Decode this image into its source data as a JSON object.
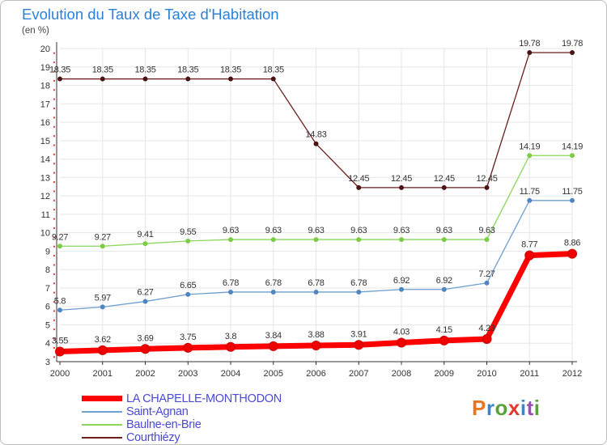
{
  "chart_data": {
    "type": "line",
    "title": "Evolution du Taux de Taxe d'Habitation",
    "ylabel": "(en %)",
    "xlabel": "",
    "ylim": [
      3,
      20
    ],
    "yticks": [
      "3",
      "4",
      "5",
      "6",
      "7",
      "8",
      "9",
      "10",
      "11",
      "12",
      "13",
      "14",
      "15",
      "16",
      "17",
      "18",
      "19",
      "20"
    ],
    "categories": [
      "2000",
      "2001",
      "2002",
      "2003",
      "2004",
      "2005",
      "2006",
      "2007",
      "2008",
      "2009",
      "2010",
      "2011",
      "2012"
    ],
    "series": [
      {
        "name": "Courthiézy",
        "color": "#6b1f1f",
        "marker": "#4a1414",
        "values": [
          18.35,
          18.35,
          18.35,
          18.35,
          18.35,
          18.35,
          14.83,
          12.45,
          12.45,
          12.45,
          12.45,
          19.78,
          19.78
        ],
        "labels": [
          "18.35",
          "18.35",
          "18.35",
          "18.35",
          "18.35",
          "18.35",
          "14.83",
          "12.45",
          "12.45",
          "12.45",
          "12.45",
          "19.78",
          "19.78"
        ]
      },
      {
        "name": "Baulne-en-Brie",
        "color": "#8ad65a",
        "marker": "#7ccc44",
        "values": [
          9.27,
          9.27,
          9.41,
          9.55,
          9.63,
          9.63,
          9.63,
          9.63,
          9.63,
          9.63,
          9.63,
          14.19,
          14.19
        ],
        "labels": [
          "9.27",
          "9.27",
          "9.41",
          "9.55",
          "9.63",
          "9.63",
          "9.63",
          "9.63",
          "9.63",
          "9.63",
          "9.63",
          "14.19",
          "14.19"
        ]
      },
      {
        "name": "Saint-Agnan",
        "color": "#6d9fcf",
        "marker": "#4f86c2",
        "values": [
          5.8,
          5.97,
          6.27,
          6.65,
          6.78,
          6.78,
          6.78,
          6.78,
          6.92,
          6.92,
          7.27,
          11.75,
          11.75
        ],
        "labels": [
          "5.8",
          "5.97",
          "6.27",
          "6.65",
          "6.78",
          "6.78",
          "6.78",
          "6.78",
          "6.92",
          "6.92",
          "7.27",
          "11.75",
          "11.75"
        ]
      },
      {
        "name": "LA CHAPELLE-MONTHODON",
        "color": "#ff0000",
        "marker": "#ee0000",
        "values": [
          3.55,
          3.62,
          3.69,
          3.75,
          3.8,
          3.84,
          3.88,
          3.91,
          4.03,
          4.15,
          4.23,
          8.77,
          8.86
        ],
        "labels": [
          "3.55",
          "3.62",
          "3.69",
          "3.75",
          "3.8",
          "3.84",
          "3.88",
          "3.91",
          "4.03",
          "4.15",
          "4.23",
          "8.77",
          "8.86"
        ]
      }
    ],
    "legend": [
      {
        "name": "LA CHAPELLE-MONTHODON",
        "color": "#ff0000"
      },
      {
        "name": "Saint-Agnan",
        "color": "#6d9fcf"
      },
      {
        "name": "Baulne-en-Brie",
        "color": "#8ad65a"
      },
      {
        "name": "Courthiézy",
        "color": "#6b1f1f"
      }
    ],
    "legend_position": "bottom-left"
  },
  "brand": {
    "logo_text": "Proxiti"
  }
}
